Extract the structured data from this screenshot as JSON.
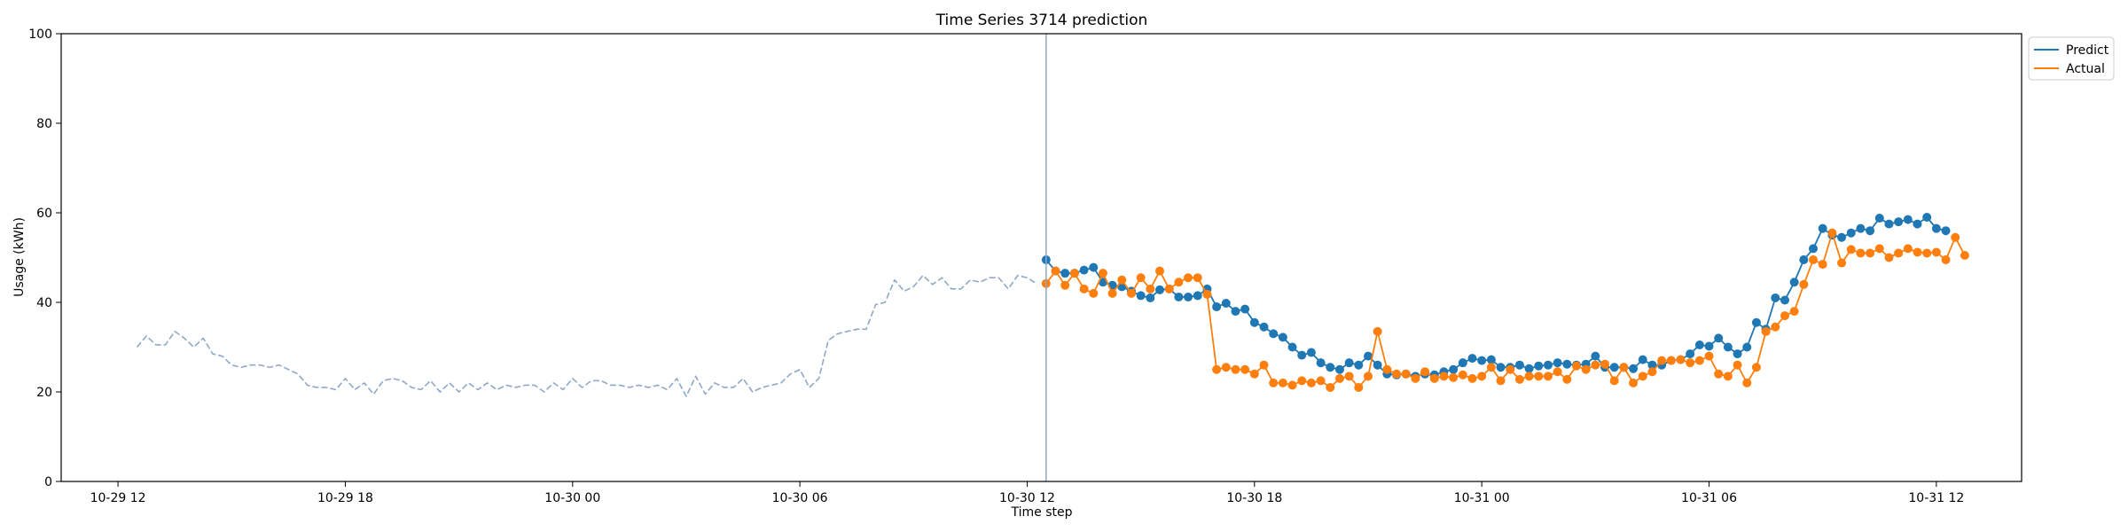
{
  "chart_data": {
    "type": "line",
    "title": "Time Series 3714 prediction",
    "xlabel": "Time step",
    "ylabel": "Usage (kWh)",
    "ylim": [
      0,
      100
    ],
    "yticks": [
      0,
      20,
      40,
      60,
      80,
      100
    ],
    "xlim": [
      "2023-10-29 10:30",
      "2023-10-31 14:15"
    ],
    "xticks": [
      {
        "t": "2023-10-29 12:00",
        "label": "10-29 12"
      },
      {
        "t": "2023-10-29 18:00",
        "label": "10-29 18"
      },
      {
        "t": "2023-10-30 00:00",
        "label": "10-30 00"
      },
      {
        "t": "2023-10-30 06:00",
        "label": "10-30 06"
      },
      {
        "t": "2023-10-30 12:00",
        "label": "10-30 12"
      },
      {
        "t": "2023-10-30 18:00",
        "label": "10-30 18"
      },
      {
        "t": "2023-10-31 00:00",
        "label": "10-31 00"
      },
      {
        "t": "2023-10-31 06:00",
        "label": "10-31 06"
      },
      {
        "t": "2023-10-31 12:00",
        "label": "10-31 12"
      }
    ],
    "grid": false,
    "legend_position": "upper-right-outside",
    "forecast_start": "2023-10-30 12:30",
    "series": [
      {
        "name": "Predict",
        "color": "#1f77b4",
        "style": "solid-markers",
        "x_start": "2023-10-30 12:30",
        "step_minutes": 15,
        "values": [
          49.5,
          47.0,
          46.5,
          46.5,
          47.2,
          47.8,
          44.5,
          43.8,
          43.5,
          42.5,
          41.5,
          41.0,
          42.8,
          43.0,
          41.2,
          41.2,
          41.5,
          43.0,
          39.0,
          39.8,
          38.0,
          38.5,
          35.5,
          34.5,
          33.0,
          32.2,
          30.0,
          28.2,
          28.8,
          26.5,
          25.5,
          25.0,
          26.5,
          26.0,
          28.0,
          26.0,
          24.0,
          23.8,
          24.0,
          23.5,
          24.0,
          23.8,
          24.5,
          25.0,
          26.5,
          27.5,
          27.0,
          27.2,
          25.5,
          25.5,
          26.0,
          25.2,
          25.8,
          26.0,
          26.5,
          26.2,
          26.0,
          26.2,
          28.0,
          25.5,
          25.5,
          25.5,
          25.2,
          27.2,
          26.0,
          26.0,
          27.0,
          27.2,
          28.5,
          30.5,
          30.2,
          32.0,
          30.0,
          28.5,
          30.0,
          35.5,
          34.0,
          41.0,
          40.5,
          44.5,
          49.5,
          52.0,
          56.5,
          55.0,
          54.5,
          55.5,
          56.5,
          56.0,
          58.8,
          57.5,
          58.0,
          58.5,
          57.5,
          59.0,
          56.5,
          56.0
        ]
      },
      {
        "name": "Actual",
        "color": "#ff7f0e",
        "style": "solid-markers",
        "x_start": "2023-10-30 12:30",
        "step_minutes": 15,
        "values": [
          44.2,
          47.0,
          43.8,
          46.5,
          43.0,
          42.0,
          46.5,
          42.0,
          45.0,
          42.0,
          45.5,
          43.0,
          47.0,
          43.0,
          44.5,
          45.5,
          45.5,
          41.8,
          25.0,
          25.5,
          25.0,
          25.0,
          24.0,
          26.0,
          22.0,
          22.0,
          21.5,
          22.5,
          22.0,
          22.5,
          21.0,
          23.0,
          23.5,
          21.0,
          23.5,
          33.5,
          25.0,
          24.0,
          24.0,
          23.0,
          24.5,
          23.0,
          23.5,
          23.2,
          23.8,
          23.0,
          23.5,
          25.5,
          22.5,
          25.0,
          22.8,
          23.5,
          23.5,
          23.5,
          24.5,
          22.8,
          25.8,
          25.0,
          26.0,
          26.2,
          22.5,
          25.5,
          22.0,
          23.5,
          24.5,
          27.0,
          27.0,
          27.2,
          26.5,
          27.0,
          28.0,
          24.0,
          23.5,
          26.0,
          22.0,
          25.5,
          33.5,
          34.5,
          37.0,
          38.0,
          44.0,
          49.5,
          48.5,
          55.5,
          48.8,
          51.8,
          51.0,
          51.0,
          52.0,
          50.0,
          51.0,
          52.0,
          51.2,
          51.0,
          51.2,
          49.5,
          54.5,
          50.5
        ]
      },
      {
        "name": "",
        "color": "#8fa8c8",
        "style": "dashed",
        "x_start": "2023-10-29 12:30",
        "step_minutes": 15,
        "values": [
          30.0,
          32.5,
          30.5,
          30.5,
          33.5,
          32.0,
          30.0,
          32.0,
          28.5,
          28.0,
          26.0,
          25.5,
          26.0,
          26.0,
          25.5,
          26.0,
          25.0,
          24.0,
          21.5,
          21.0,
          21.0,
          20.5,
          23.0,
          20.5,
          22.0,
          19.5,
          22.5,
          23.0,
          22.5,
          21.0,
          20.5,
          22.5,
          20.0,
          22.0,
          20.0,
          22.0,
          20.5,
          22.0,
          20.5,
          21.5,
          21.0,
          21.5,
          21.5,
          20.0,
          22.0,
          20.5,
          23.0,
          21.0,
          22.5,
          22.5,
          21.5,
          21.5,
          21.0,
          21.5,
          21.0,
          21.5,
          20.5,
          23.0,
          19.0,
          23.5,
          19.5,
          22.0,
          21.0,
          21.0,
          23.0,
          20.0,
          21.0,
          21.5,
          22.0,
          24.0,
          25.0,
          21.0,
          23.0,
          31.5,
          33.0,
          33.5,
          34.0,
          34.0,
          39.5,
          40.0,
          45.0,
          42.5,
          43.5,
          46.0,
          44.0,
          45.5,
          43.0,
          43.0,
          45.0,
          44.5,
          45.5,
          45.5,
          43.0,
          46.0,
          45.5,
          44.2
        ]
      }
    ]
  }
}
